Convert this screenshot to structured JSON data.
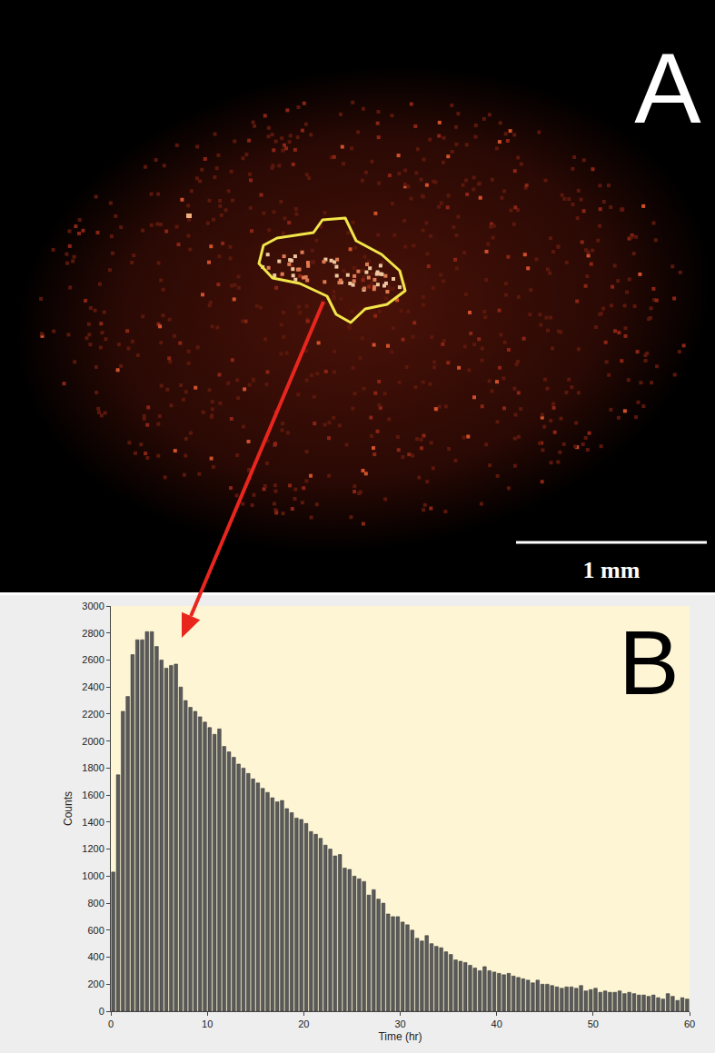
{
  "image": {
    "label": "A",
    "scale_bar": "1 mm"
  },
  "chart_data": {
    "type": "histogram",
    "annotations": [
      "B"
    ],
    "x_label": "Time (hr)",
    "y_label": "Counts",
    "bins": [
      0,
      0.5,
      1,
      1.5,
      2,
      2.5,
      3,
      3.5,
      4,
      4.5,
      5,
      5.5,
      6,
      6.5,
      7,
      7.5,
      8,
      8.5,
      9,
      9.5,
      10,
      10.5,
      11,
      11.5,
      12,
      12.5,
      13,
      13.5,
      14,
      14.5,
      15,
      15.5,
      16,
      16.5,
      17,
      17.5,
      18,
      18.5,
      19,
      19.5,
      20,
      20.5,
      21,
      21.5,
      22,
      22.5,
      23,
      23.5,
      24,
      24.5,
      25,
      25.5,
      26,
      26.5,
      27,
      27.5,
      28,
      28.5,
      29,
      29.5,
      30,
      30.5,
      31,
      31.5,
      32,
      32.5,
      33,
      33.5,
      34,
      34.5,
      35,
      35.5,
      36,
      36.5,
      37,
      37.5,
      38,
      38.5,
      39,
      39.5,
      40,
      40.5,
      41,
      41.5,
      42,
      42.5,
      43,
      43.5,
      44,
      44.5,
      45,
      45.5,
      46,
      46.5,
      47,
      47.5,
      48,
      48.5,
      49,
      49.5,
      50,
      50.5,
      51,
      51.5,
      52,
      52.5,
      53,
      53.5,
      54,
      54.5,
      55,
      55.5,
      56,
      56.5,
      57,
      57.5,
      58,
      58.5,
      59,
      59.5,
      60
    ],
    "values": [
      1030,
      1750,
      2220,
      2330,
      2640,
      2750,
      2750,
      2810,
      2810,
      2700,
      2600,
      2540,
      2560,
      2570,
      2400,
      2300,
      2250,
      2220,
      2180,
      2140,
      2100,
      2050,
      2090,
      1960,
      1920,
      1880,
      1830,
      1800,
      1760,
      1720,
      1690,
      1650,
      1620,
      1580,
      1550,
      1560,
      1500,
      1470,
      1430,
      1420,
      1390,
      1330,
      1310,
      1280,
      1230,
      1200,
      1150,
      1160,
      1060,
      1050,
      1000,
      980,
      960,
      860,
      900,
      830,
      800,
      720,
      700,
      700,
      660,
      640,
      600,
      540,
      520,
      560,
      500,
      480,
      470,
      440,
      420,
      380,
      370,
      360,
      340,
      320,
      300,
      330,
      300,
      290,
      280,
      270,
      280,
      260,
      250,
      240,
      230,
      210,
      230,
      200,
      200,
      190,
      180,
      170,
      180,
      180,
      170,
      190,
      150,
      160,
      170,
      140,
      150,
      140,
      140,
      150,
      130,
      140,
      130,
      120,
      120,
      110,
      120,
      100,
      90,
      130,
      110,
      80,
      100,
      90
    ],
    "color": "#5a5a5a",
    "xlim": [
      0,
      60
    ],
    "xticks": [
      0,
      10,
      20,
      30,
      40,
      50,
      60
    ],
    "ylim": [
      0,
      3000
    ],
    "yticks": [
      0,
      200,
      400,
      600,
      800,
      1000,
      1200,
      1400,
      1600,
      1800,
      2000,
      2200,
      2400,
      2600,
      2800,
      3000
    ],
    "grid": false
  }
}
